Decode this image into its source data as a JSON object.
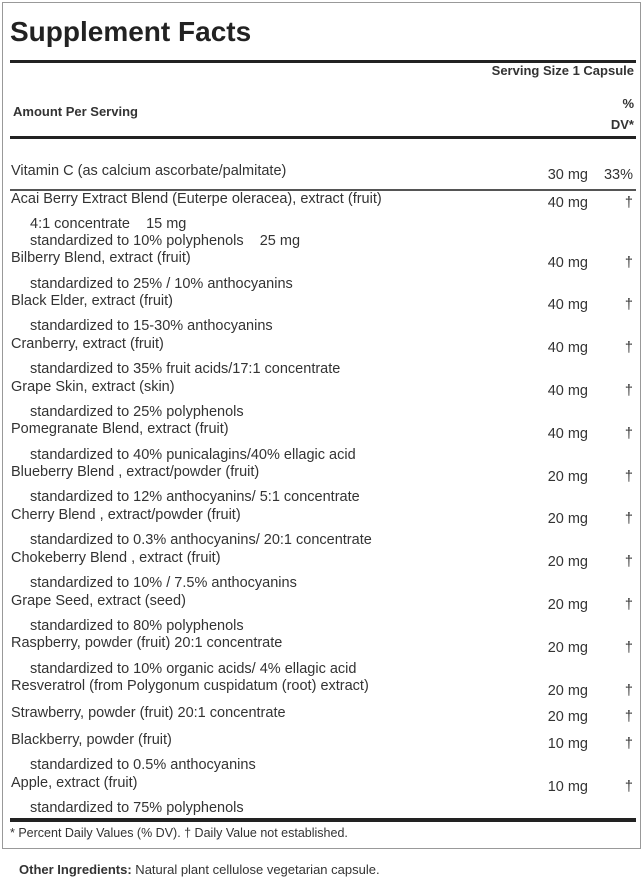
{
  "title": "Supplement Facts",
  "serving_size": "Serving Size 1 Capsule",
  "amount_per_serving": "Amount Per Serving",
  "dv_header": {
    "line1": "%",
    "line2": "DV*"
  },
  "ingredients": [
    {
      "name": "Vitamin C (as calcium ascorbate/palmitate)",
      "amount": "30 mg",
      "dv": "33%",
      "sub": []
    },
    {
      "name": "Acai Berry Extract Blend (Euterpe oleracea), extract (fruit)",
      "amount": "40 mg",
      "dv": "†",
      "sub": [
        "4:1 concentrate    15 mg",
        "standardized to 10% polyphenols    25 mg"
      ]
    },
    {
      "name": "Bilberry Blend, extract (fruit)",
      "amount": "40 mg",
      "dv": "†",
      "sub": [
        "standardized to 25% / 10% anthocyanins"
      ]
    },
    {
      "name": "Black Elder, extract (fruit)",
      "amount": "40 mg",
      "dv": "†",
      "sub": [
        "standardized to 15-30% anthocyanins"
      ]
    },
    {
      "name": "Cranberry, extract (fruit)",
      "amount": "40 mg",
      "dv": "†",
      "sub": [
        "standardized to 35% fruit acids/17:1 concentrate"
      ]
    },
    {
      "name": "Grape Skin, extract (skin)",
      "amount": "40 mg",
      "dv": "†",
      "sub": [
        "standardized to 25% polyphenols"
      ]
    },
    {
      "name": "Pomegranate Blend, extract (fruit)",
      "amount": "40 mg",
      "dv": "†",
      "sub": [
        "standardized to 40% punicalagins/40% ellagic acid"
      ]
    },
    {
      "name": "Blueberry Blend , extract/powder (fruit)",
      "amount": "20 mg",
      "dv": "†",
      "sub": [
        "standardized to 12% anthocyanins/ 5:1 concentrate"
      ]
    },
    {
      "name": "Cherry Blend , extract/powder (fruit)",
      "amount": "20 mg",
      "dv": "†",
      "sub": [
        "standardized to 0.3% anthocyanins/ 20:1 concentrate"
      ]
    },
    {
      "name": "Chokeberry Blend , extract (fruit)",
      "amount": "20 mg",
      "dv": "†",
      "sub": [
        "standardized to 10% / 7.5% anthocyanins"
      ]
    },
    {
      "name": "Grape Seed, extract (seed)",
      "amount": "20 mg",
      "dv": "†",
      "sub": [
        "standardized to 80% polyphenols"
      ]
    },
    {
      "name": "Raspberry, powder (fruit) 20:1 concentrate",
      "amount": "20 mg",
      "dv": "†",
      "sub": [
        "standardized to 10% organic acids/ 4% ellagic acid"
      ]
    },
    {
      "name": "Resveratrol (from Polygonum cuspidatum (root) extract)",
      "amount": "20 mg",
      "dv": "†",
      "sub": []
    },
    {
      "name": "Strawberry, powder (fruit) 20:1 concentrate",
      "amount": "20 mg",
      "dv": "†",
      "sub": []
    },
    {
      "name": "Blackberry, powder (fruit)",
      "amount": "10 mg",
      "dv": "†",
      "sub": [
        "standardized to 0.5% anthocyanins"
      ]
    },
    {
      "name": "Apple, extract (fruit)",
      "amount": "10 mg",
      "dv": "†",
      "sub": [
        "standardized to 75% polyphenols"
      ]
    }
  ],
  "footnote": "* Percent Daily Values (% DV). † Daily Value not established.",
  "other_ingredients": {
    "label": "Other Ingredients:",
    "text": " Natural plant cellulose vegetarian capsule."
  }
}
